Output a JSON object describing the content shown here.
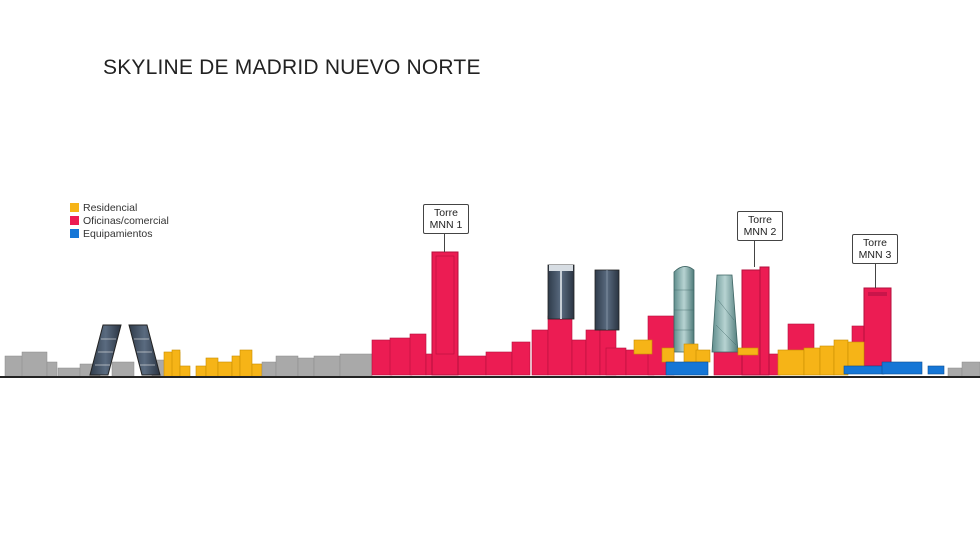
{
  "title": "SKYLINE DE MADRID NUEVO NORTE",
  "legend": [
    {
      "label": "Residencial",
      "color": "#f6b417"
    },
    {
      "label": "Oficinas/comercial",
      "color": "#ec1c53"
    },
    {
      "label": "Equipamientos",
      "color": "#1576d6"
    }
  ],
  "towers": [
    {
      "line1": "Torre",
      "line2": "MNN 1"
    },
    {
      "line1": "Torre",
      "line2": "MNN 2"
    },
    {
      "line1": "Torre",
      "line2": "MNN 3"
    }
  ],
  "colors": {
    "existing": "#a6a6a6",
    "glass": "#3b4a5c",
    "ground": "#222222"
  }
}
